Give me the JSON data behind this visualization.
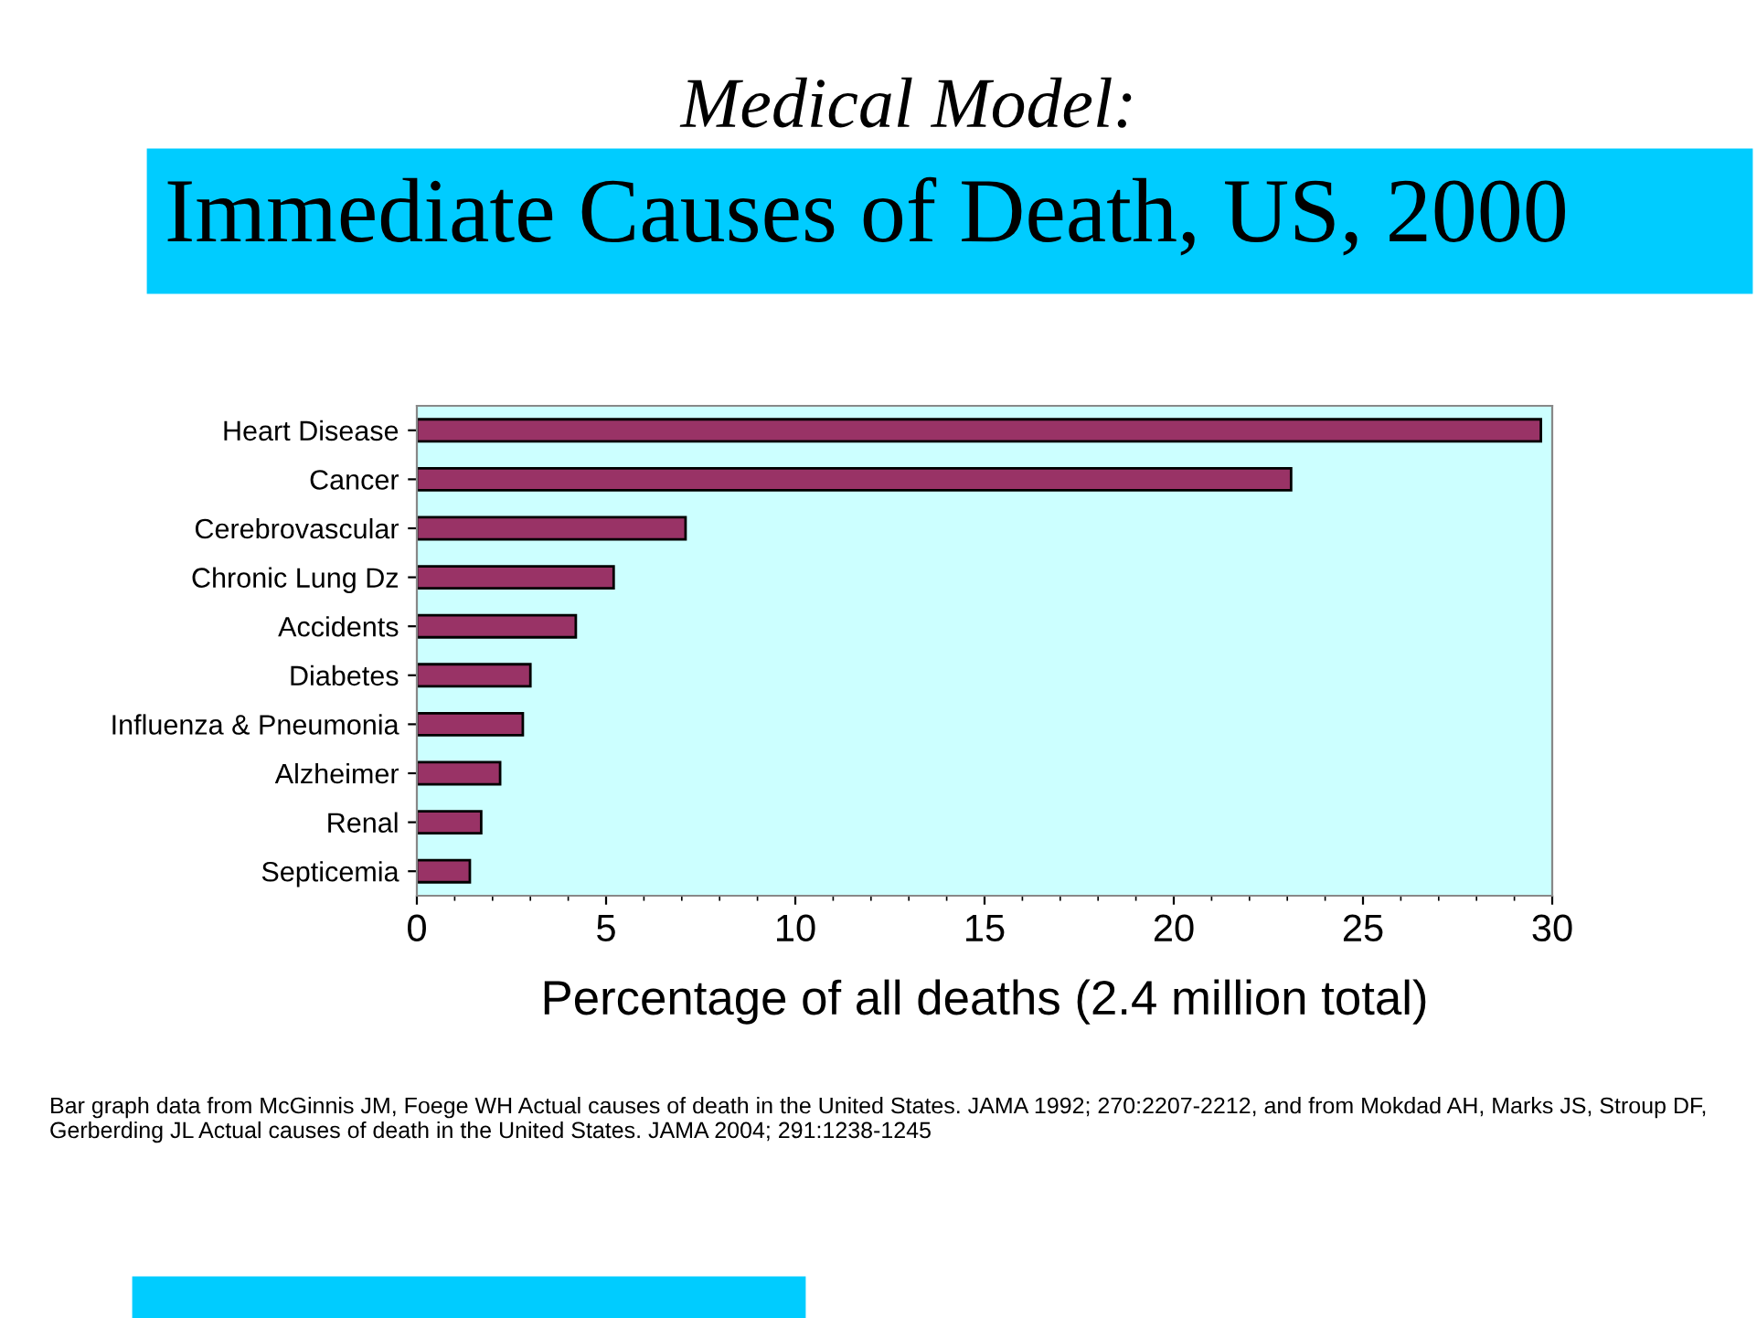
{
  "chart_data": {
    "type": "bar",
    "orientation": "horizontal",
    "subtitle": "Medical Model:",
    "title": "Immediate Causes of Death, US, 2000",
    "xlabel": "Percentage of all deaths (2.4 million total)",
    "categories": [
      "Heart Disease",
      "Cancer",
      "Cerebrovascular",
      "Chronic Lung Dz",
      "Accidents",
      "Diabetes",
      "Influenza & Pneumonia",
      "Alzheimer",
      "Renal",
      "Septicemia"
    ],
    "values": [
      29.7,
      23.1,
      7.1,
      5.2,
      4.2,
      3.0,
      2.8,
      2.2,
      1.7,
      1.4
    ],
    "color": "#993366",
    "xlim": [
      0,
      30
    ],
    "xticks": [
      0,
      5,
      10,
      15,
      20,
      25,
      30
    ],
    "grid": false,
    "annotations": [
      "Bar graph data from McGinnis JM, Foege WH Actual causes of death in the United States. JAMA 1992; 270:2207-2212, and from Mokdad AH, Marks JS, Stroup DF, Gerberding JL Actual causes of death in the United States. JAMA 2004; 291:1238-1245"
    ]
  }
}
